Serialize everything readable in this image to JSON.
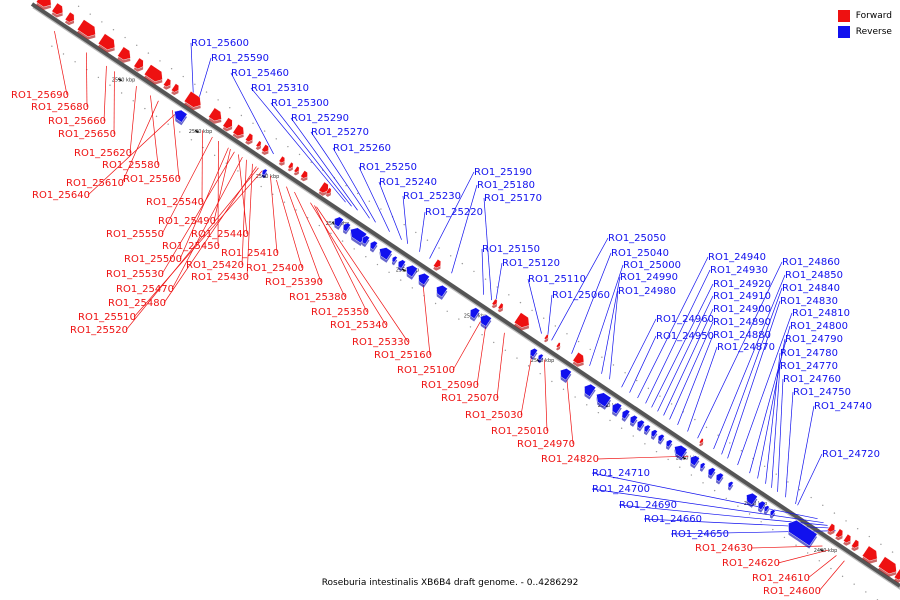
{
  "legend": {
    "forward_label": "Forward",
    "reverse_label": "Reverse",
    "forward_color": "#ee1111",
    "reverse_color": "#1111ee"
  },
  "caption": "Roseburia intestinalis XB6B4 draft genome. - 0..4286292",
  "ticks": [
    "2590 kbp",
    "2580 kbp",
    "2570 kbp",
    "2560 kbp",
    "2550 kbp",
    "2540 kbp",
    "2530 kbp",
    "2520 kbp",
    "2510 kbp",
    "2500 kbp",
    "2490 kbp"
  ],
  "genes_forward": [
    "RO1_25690",
    "RO1_25680",
    "RO1_25660",
    "RO1_25650",
    "RO1_25620",
    "RO1_25580",
    "RO1_25610",
    "RO1_25560",
    "RO1_25640",
    "RO1_25540",
    "RO1_25490",
    "RO1_25550",
    "RO1_25440",
    "RO1_25450",
    "RO1_25500",
    "RO1_25410",
    "RO1_25420",
    "RO1_25400",
    "RO1_25530",
    "RO1_25430",
    "RO1_25470",
    "RO1_25390",
    "RO1_25480",
    "RO1_25380",
    "RO1_25510",
    "RO1_25350",
    "RO1_25520",
    "RO1_25340",
    "RO1_25330",
    "RO1_25160",
    "RO1_25100",
    "RO1_25090",
    "RO1_25070",
    "RO1_25030",
    "RO1_25010",
    "RO1_24970",
    "RO1_24820",
    "RO1_24630",
    "RO1_24620",
    "RO1_24610",
    "RO1_24600"
  ],
  "genes_reverse": [
    "RO1_25600",
    "RO1_25590",
    "RO1_25460",
    "RO1_25310",
    "RO1_25300",
    "RO1_25290",
    "RO1_25270",
    "RO1_25260",
    "RO1_25250",
    "RO1_25240",
    "RO1_25230",
    "RO1_25220",
    "RO1_25190",
    "RO1_25180",
    "RO1_25170",
    "RO1_25150",
    "RO1_25120",
    "RO1_25110",
    "RO1_25060",
    "RO1_25050",
    "RO1_25040",
    "RO1_25000",
    "RO1_24990",
    "RO1_24980",
    "RO1_24960",
    "RO1_24950",
    "RO1_24940",
    "RO1_24930",
    "RO1_24920",
    "RO1_24910",
    "RO1_24900",
    "RO1_24890",
    "RO1_24880",
    "RO1_24870",
    "RO1_24860",
    "RO1_24850",
    "RO1_24840",
    "RO1_24830",
    "RO1_24810",
    "RO1_24800",
    "RO1_24790",
    "RO1_24780",
    "RO1_24770",
    "RO1_24760",
    "RO1_24750",
    "RO1_24740",
    "RO1_24720",
    "RO1_24710",
    "RO1_24700",
    "RO1_24690",
    "RO1_24660",
    "RO1_24650"
  ]
}
